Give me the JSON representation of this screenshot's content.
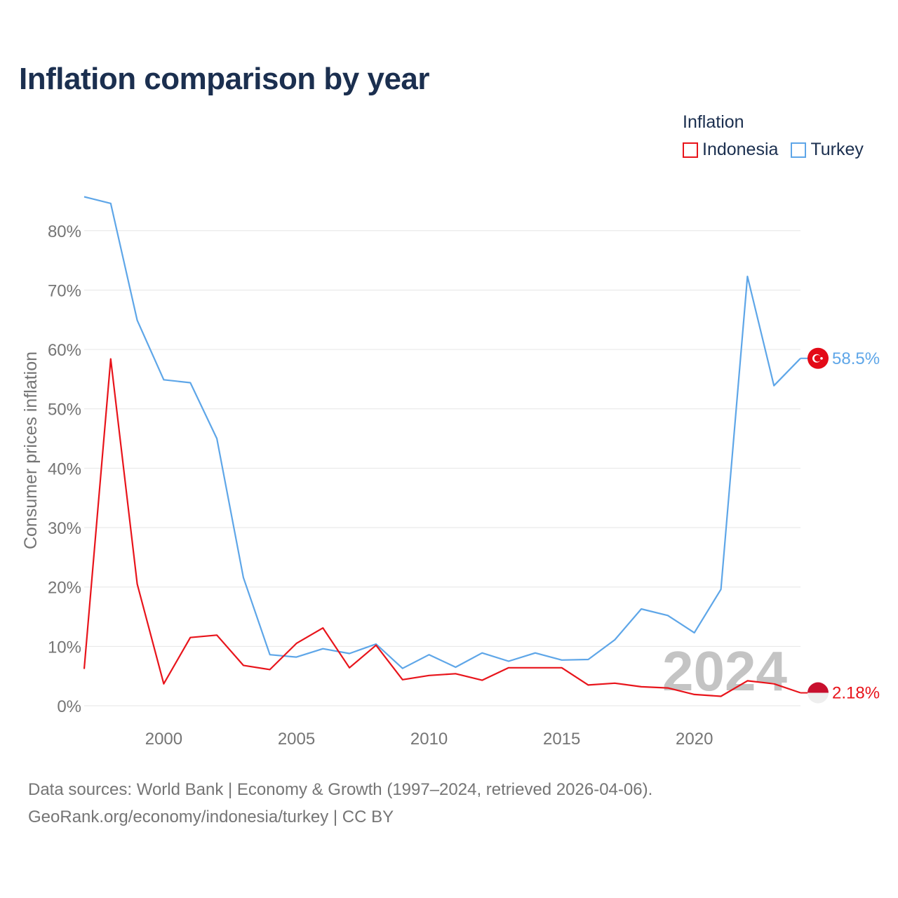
{
  "title": "Inflation comparison by year",
  "legend": {
    "title": "Inflation",
    "items": [
      {
        "label": "Indonesia",
        "color": "#e8141b"
      },
      {
        "label": "Turkey",
        "color": "#5ea6e8"
      }
    ]
  },
  "watermark_year": "2024",
  "end_labels": {
    "turkey": "58.5%",
    "indonesia": "2.18%"
  },
  "source": {
    "line1": "Data sources: World Bank | Economy & Growth (1997–2024, retrieved 2026-04-06).",
    "line2": "GeoRank.org/economy/indonesia/turkey | CC BY"
  },
  "chart_data": {
    "type": "line",
    "title": "Inflation comparison by year",
    "xlabel": "",
    "ylabel": "Consumer prices inflation",
    "xlim": [
      1997,
      2024
    ],
    "ylim": [
      0,
      86
    ],
    "yticks": [
      0,
      10,
      20,
      30,
      40,
      50,
      60,
      70,
      80
    ],
    "ytick_labels": [
      "0%",
      "10%",
      "20%",
      "30%",
      "40%",
      "50%",
      "60%",
      "70%",
      "80%"
    ],
    "xticks": [
      2000,
      2005,
      2010,
      2015,
      2020
    ],
    "xtick_labels": [
      "2000",
      "2005",
      "2010",
      "2015",
      "2020"
    ],
    "x": [
      1997,
      1998,
      1999,
      2000,
      2001,
      2002,
      2003,
      2004,
      2005,
      2006,
      2007,
      2008,
      2009,
      2010,
      2011,
      2012,
      2013,
      2014,
      2015,
      2016,
      2017,
      2018,
      2019,
      2020,
      2021,
      2022,
      2023,
      2024
    ],
    "series": [
      {
        "name": "Turkey",
        "color": "#5ea6e8",
        "values": [
          85.7,
          84.6,
          64.9,
          54.9,
          54.4,
          45.0,
          21.6,
          8.6,
          8.2,
          9.6,
          8.8,
          10.4,
          6.3,
          8.6,
          6.5,
          8.9,
          7.5,
          8.9,
          7.7,
          7.8,
          11.1,
          16.3,
          15.2,
          12.3,
          19.6,
          72.3,
          53.9,
          58.5
        ]
      },
      {
        "name": "Indonesia",
        "color": "#e8141b",
        "values": [
          6.2,
          58.4,
          20.5,
          3.7,
          11.5,
          11.9,
          6.8,
          6.1,
          10.5,
          13.1,
          6.4,
          10.2,
          4.4,
          5.1,
          5.4,
          4.3,
          6.4,
          6.4,
          6.4,
          3.5,
          3.8,
          3.2,
          3.0,
          1.9,
          1.6,
          4.2,
          3.7,
          2.18
        ]
      }
    ]
  }
}
